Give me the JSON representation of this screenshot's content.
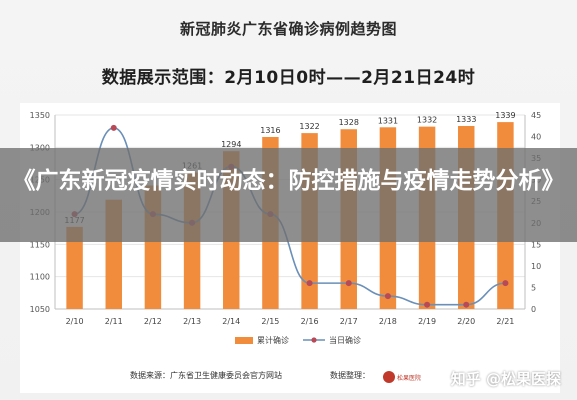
{
  "title": "新冠肺炎广东省确诊病例趋势图",
  "subtitle": "数据展示范围：2月10日0时——2月21日24时",
  "overlay_headline": "《广东新冠疫情实时动态：防控措施与疫情走势分析》",
  "footer": {
    "source": "数据来源：广东省卫生健康委员会官方网站",
    "compiler_label": "数据整理：",
    "logo_text": "松果医院",
    "watermark": "知乎 @松果医探"
  },
  "colors": {
    "bar": "#f08c3c",
    "line": "#6a8fb8",
    "marker": "#b84a57",
    "axis": "#bfbfbf"
  },
  "chart_data": {
    "type": "bar+line",
    "categories": [
      "2/10",
      "2/11",
      "2/12",
      "2/13",
      "2/14",
      "2/15",
      "2/16",
      "2/17",
      "2/18",
      "2/19",
      "2/20",
      "2/21"
    ],
    "series": [
      {
        "name": "累计确诊",
        "type": "bar",
        "axis": "left",
        "values": [
          1177,
          1219,
          1241,
          1261,
          1294,
          1316,
          1322,
          1328,
          1331,
          1332,
          1333,
          1339
        ]
      },
      {
        "name": "当日确诊",
        "type": "line",
        "axis": "right",
        "values": [
          22,
          42,
          22,
          20,
          33,
          22,
          6,
          6,
          3,
          1,
          1,
          6
        ]
      }
    ],
    "bar_labels": [
      "1177",
      "",
      "",
      "1261",
      "1294",
      "1316",
      "1322",
      "1328",
      "1331",
      "1332",
      "1333",
      "1339"
    ],
    "left_axis": {
      "range": [
        1050,
        1350
      ],
      "ticks": [
        "1050",
        "1100",
        "1150",
        "1200",
        "1250",
        "1300",
        "1350"
      ]
    },
    "right_axis": {
      "range": [
        0,
        45
      ],
      "ticks": [
        "0",
        "5",
        "10",
        "15",
        "20",
        "25",
        "30",
        "35",
        "40",
        "45"
      ]
    },
    "grid": true,
    "legend_position": "bottom"
  }
}
